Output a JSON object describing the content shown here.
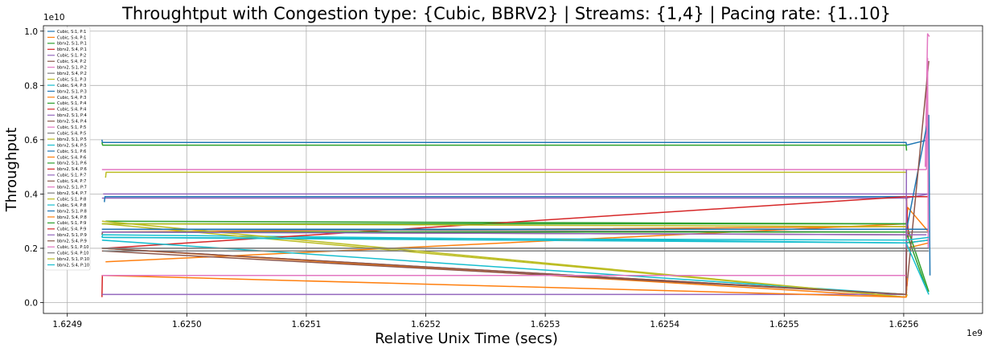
{
  "chart_data": {
    "type": "line",
    "title": "Throughtput with Congestion type: {Cubic, BBRV2} | Streams: {1,4} | Pacing rate: {1..10}",
    "xlabel": "Relative Unix Time (secs)",
    "ylabel": "Throughput",
    "x_offset_label": "1e9",
    "y_offset_label": "1e10",
    "xlim": [
      1624880000,
      1625666000
    ],
    "ylim": [
      -0.04,
      1.02
    ],
    "x_ticks": [
      1624900000,
      1625000000,
      1625100000,
      1625200000,
      1625300000,
      1625400000,
      1625500000,
      1625600000
    ],
    "x_tick_labels": [
      "1.6249",
      "1.6250",
      "1.6251",
      "1.6252",
      "1.6253",
      "1.6254",
      "1.6255",
      "1.6256"
    ],
    "y_ticks": [
      0.0,
      0.2,
      0.4,
      0.6,
      0.8,
      1.0
    ],
    "y_tick_labels": [
      "0.0",
      "0.2",
      "0.4",
      "0.6",
      "0.8",
      "1.0"
    ],
    "grid": true,
    "legend_position": "upper-left",
    "series": [
      {
        "name": "Cubic, S:1, P:1",
        "color": "#1f77b4",
        "points": [
          [
            1624929000,
            0.6
          ],
          [
            1624929300,
            0.59
          ],
          [
            1625602000,
            0.59
          ],
          [
            1625602300,
            0.58
          ],
          [
            1625621000,
            0.6
          ]
        ]
      },
      {
        "name": "Cubic, S:4, P:1",
        "color": "#ff7f0e",
        "points": [
          [
            1624929500,
            0.26
          ],
          [
            1625602000,
            0.28
          ],
          [
            1625602500,
            0.2
          ],
          [
            1625621000,
            0.22
          ]
        ]
      },
      {
        "name": "bbrv2, S:1, P:1",
        "color": "#2ca02c",
        "points": [
          [
            1624929000,
            0.59
          ],
          [
            1624929500,
            0.58
          ],
          [
            1625602000,
            0.58
          ],
          [
            1625602400,
            0.56
          ]
        ]
      },
      {
        "name": "bbrv2, S:4, P:1",
        "color": "#d62728",
        "points": [
          [
            1624929000,
            0.02
          ],
          [
            1624929300,
            0.1
          ],
          [
            1625602000,
            0.1
          ],
          [
            1625602300,
            0.06
          ]
        ]
      },
      {
        "name": "Cubic, S:1, P:2",
        "color": "#9467bd",
        "points": [
          [
            1624929000,
            0.385
          ],
          [
            1625602000,
            0.385
          ],
          [
            1625621000,
            0.4
          ]
        ]
      },
      {
        "name": "Cubic, S:4, P:2",
        "color": "#8c564b",
        "points": [
          [
            1624929000,
            0.25
          ],
          [
            1624929500,
            0.26
          ],
          [
            1625602000,
            0.25
          ],
          [
            1625602400,
            0.22
          ],
          [
            1625621000,
            0.23
          ]
        ]
      },
      {
        "name": "bbrv2, S:1, P:2",
        "color": "#e377c2",
        "points": [
          [
            1625618000,
            0.5
          ],
          [
            1625620000,
            0.99
          ],
          [
            1625621500,
            0.98
          ]
        ]
      },
      {
        "name": "bbrv2, S:4, P:2",
        "color": "#7f7f7f",
        "points": [
          [
            1624929000,
            0.2
          ],
          [
            1625602000,
            0.2
          ],
          [
            1625621000,
            0.2
          ]
        ]
      },
      {
        "name": "Cubic, S:1, P:3",
        "color": "#bcbd22",
        "points": [
          [
            1624932000,
            0.46
          ],
          [
            1624932500,
            0.48
          ],
          [
            1625602000,
            0.48
          ],
          [
            1625602400,
            0.475
          ]
        ]
      },
      {
        "name": "Cubic, S:4, P:3",
        "color": "#17becf",
        "points": [
          [
            1624929000,
            0.24
          ],
          [
            1624929500,
            0.25
          ],
          [
            1625602000,
            0.22
          ],
          [
            1625621000,
            0.23
          ]
        ]
      },
      {
        "name": "bbrv2, S:1, P:3",
        "color": "#1f77b4",
        "points": [
          [
            1624931000,
            0.37
          ],
          [
            1624931500,
            0.39
          ],
          [
            1625602000,
            0.39
          ]
        ]
      },
      {
        "name": "Cubic, S:4, P:3",
        "color": "#ff7f0e",
        "points": [
          [
            1624932000,
            0.15
          ],
          [
            1625602000,
            0.29
          ],
          [
            1625603500,
            0.35
          ],
          [
            1625621000,
            0.26
          ]
        ]
      },
      {
        "name": "Cubic, S:1, P:4",
        "color": "#2ca02c",
        "points": [
          [
            1624932000,
            0.3
          ],
          [
            1625602000,
            0.29
          ],
          [
            1625621000,
            0.04
          ]
        ]
      },
      {
        "name": "Cubic, S:4, P:4",
        "color": "#d62728",
        "points": [
          [
            1624932000,
            0.2
          ],
          [
            1625602000,
            0.39
          ],
          [
            1625604000,
            0.24
          ]
        ]
      },
      {
        "name": "bbrv2, S:1, P:4",
        "color": "#9467bd",
        "points": [
          [
            1624930000,
            0.4
          ],
          [
            1625602000,
            0.4
          ],
          [
            1625621000,
            0.4
          ]
        ]
      },
      {
        "name": "bbrv2, S:4, P:4",
        "color": "#8c564b",
        "points": [
          [
            1624929000,
            0.2
          ],
          [
            1625602000,
            0.03
          ],
          [
            1625602400,
            0.26
          ]
        ]
      },
      {
        "name": "Cubic, S:1, P:5",
        "color": "#e377c2",
        "points": [
          [
            1624929000,
            0.49
          ],
          [
            1625602000,
            0.49
          ],
          [
            1625619000,
            0.49
          ]
        ]
      },
      {
        "name": "Cubic, S:4, P:5",
        "color": "#7f7f7f",
        "points": [
          [
            1624929000,
            0.27
          ],
          [
            1625602000,
            0.26
          ],
          [
            1625621000,
            0.26
          ]
        ]
      },
      {
        "name": "bbrv2, S:1, P:5",
        "color": "#bcbd22",
        "points": [
          [
            1624931000,
            0.29
          ],
          [
            1625602000,
            0.02
          ],
          [
            1625603000,
            0.03
          ]
        ]
      },
      {
        "name": "bbrv2, S:4, P:5",
        "color": "#17becf",
        "points": [
          [
            1624929000,
            0.23
          ],
          [
            1625602000,
            0.03
          ],
          [
            1625602500,
            0.05
          ]
        ]
      },
      {
        "name": "Cubic, S:1, P:6",
        "color": "#1f77b4",
        "points": [
          [
            1624929000,
            0.26
          ],
          [
            1625602000,
            0.26
          ],
          [
            1625621000,
            0.69
          ],
          [
            1625622000,
            0.1
          ]
        ]
      },
      {
        "name": "Cubic, S:4, P:6",
        "color": "#ff7f0e",
        "points": [
          [
            1624929000,
            0.2
          ],
          [
            1625602000,
            0.02
          ],
          [
            1625602500,
            0.04
          ]
        ]
      },
      {
        "name": "bbrv2, S:1, P:6",
        "color": "#2ca02c",
        "points": [
          [
            1624929000,
            0.26
          ],
          [
            1625602000,
            0.26
          ],
          [
            1625620000,
            0.04
          ]
        ]
      },
      {
        "name": "bbrv2, S:4, P:6",
        "color": "#d62728",
        "points": [
          [
            1624929000,
            0.1
          ],
          [
            1625602000,
            0.1
          ],
          [
            1625602500,
            0.39
          ],
          [
            1625620000,
            0.39
          ]
        ]
      },
      {
        "name": "Cubic, S:1, P:7",
        "color": "#9467bd",
        "points": [
          [
            1624929000,
            0.03
          ],
          [
            1625602000,
            0.03
          ],
          [
            1625602300,
            0.49
          ]
        ]
      },
      {
        "name": "Cubic, S:4, P:7",
        "color": "#8c564b",
        "points": [
          [
            1624929000,
            0.19
          ],
          [
            1625602000,
            0.03
          ],
          [
            1625621000,
            0.89
          ]
        ]
      },
      {
        "name": "bbrv2, S:1, P:7",
        "color": "#e377c2",
        "points": [
          [
            1625619000,
            0.49
          ],
          [
            1625620000,
            0.9
          ],
          [
            1625620500,
            0.2
          ]
        ]
      },
      {
        "name": "bbrv2, S:4, P:7",
        "color": "#7f7f7f",
        "points": [
          [
            1624930000,
            0.19
          ],
          [
            1625602000,
            0.19
          ],
          [
            1625621000,
            0.19
          ]
        ]
      },
      {
        "name": "Cubic, S:1, P:8",
        "color": "#bcbd22",
        "points": [
          [
            1624929000,
            0.3
          ],
          [
            1625602000,
            0.02
          ],
          [
            1625602400,
            0.03
          ]
        ]
      },
      {
        "name": "Cubic, S:4, P:8",
        "color": "#17becf",
        "points": [
          [
            1624929000,
            0.24
          ],
          [
            1625602000,
            0.23
          ],
          [
            1625621000,
            0.24
          ]
        ]
      },
      {
        "name": "bbrv2, S:1, P:8",
        "color": "#1f77b4",
        "points": [
          [
            1624929000,
            0.27
          ],
          [
            1625602000,
            0.27
          ],
          [
            1625620000,
            0.27
          ]
        ]
      },
      {
        "name": "bbrv2, S:4, P:8",
        "color": "#ff7f0e",
        "points": [
          [
            1624929000,
            0.1
          ],
          [
            1625602000,
            0.02
          ],
          [
            1625603000,
            0.09
          ]
        ]
      },
      {
        "name": "Cubic, S:1, P:9",
        "color": "#2ca02c",
        "points": [
          [
            1624929000,
            0.29
          ],
          [
            1625602000,
            0.29
          ]
        ]
      },
      {
        "name": "Cubic, S:4, P:9",
        "color": "#d62728",
        "points": [
          [
            1624929000,
            0.1
          ],
          [
            1625602000,
            0.1
          ],
          [
            1625602500,
            0.06
          ]
        ]
      },
      {
        "name": "bbrv2, S:1, P:9",
        "color": "#9467bd",
        "points": [
          [
            1624929000,
            0.26
          ],
          [
            1625602000,
            0.25
          ],
          [
            1625619000,
            0.25
          ]
        ]
      },
      {
        "name": "bbrv2, S:4, P:9",
        "color": "#8c564b",
        "points": [
          [
            1624929000,
            0.2
          ],
          [
            1625602000,
            0.03
          ],
          [
            1625602400,
            0.2
          ]
        ]
      },
      {
        "name": "Cubic, S:1, P:10",
        "color": "#e377c2",
        "points": [
          [
            1624929000,
            0.1
          ],
          [
            1625602000,
            0.1
          ]
        ]
      },
      {
        "name": "Cubic, S:4, P:10",
        "color": "#7f7f7f",
        "points": [
          [
            1624929000,
            0.2
          ],
          [
            1625602000,
            0.2
          ],
          [
            1625621000,
            0.2
          ]
        ]
      },
      {
        "name": "bbrv2, S:1, P:10",
        "color": "#bcbd22",
        "points": [
          [
            1624929000,
            0.29
          ],
          [
            1625602000,
            0.28
          ]
        ]
      },
      {
        "name": "bbrv2, S:4, P:10",
        "color": "#17becf",
        "points": [
          [
            1624929000,
            0.24
          ],
          [
            1625602000,
            0.22
          ],
          [
            1625621000,
            0.03
          ]
        ]
      }
    ]
  }
}
